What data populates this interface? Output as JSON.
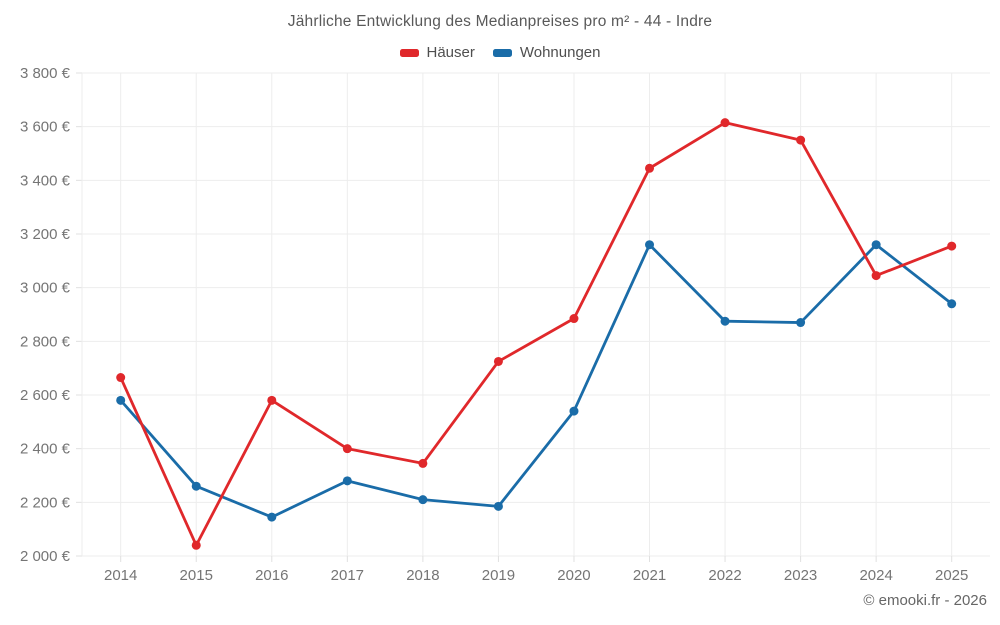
{
  "title": "Jährliche Entwicklung des Medianpreises pro m² - 44 - Indre",
  "legend": [
    {
      "label": "Häuser",
      "color": "#e0282b"
    },
    {
      "label": "Wohnungen",
      "color": "#1a6ca8"
    }
  ],
  "footer": {
    "copyright": "© emooki.fr - 2026"
  },
  "chart_data": {
    "type": "line",
    "title": "Jährliche Entwicklung des Medianpreises pro m² - 44 - Indre",
    "categories": [
      "2014",
      "2015",
      "2016",
      "2017",
      "2018",
      "2019",
      "2020",
      "2021",
      "2022",
      "2023",
      "2024",
      "2025"
    ],
    "series": [
      {
        "name": "Häuser",
        "color": "#e0282b",
        "values": [
          2665,
          2040,
          2580,
          2400,
          2345,
          2725,
          2885,
          3445,
          3615,
          3550,
          3045,
          3155
        ]
      },
      {
        "name": "Wohnungen",
        "color": "#1a6ca8",
        "values": [
          2580,
          2260,
          2145,
          2280,
          2210,
          2185,
          2540,
          3160,
          2875,
          2870,
          3160,
          2940
        ]
      }
    ],
    "ylim": [
      2000,
      3800
    ],
    "ytick_step": 200,
    "ytick_labels": [
      "2 000 €",
      "2 200 €",
      "2 400 €",
      "2 600 €",
      "2 800 €",
      "3 000 €",
      "3 200 €",
      "3 400 €",
      "3 600 €",
      "3 800 €"
    ],
    "ylabel": "",
    "xlabel": "",
    "grid": true,
    "legend_position": "top",
    "grid_color": "#ededed",
    "tick_color": "#e0e0e0",
    "axis_text_color": "#757575"
  }
}
